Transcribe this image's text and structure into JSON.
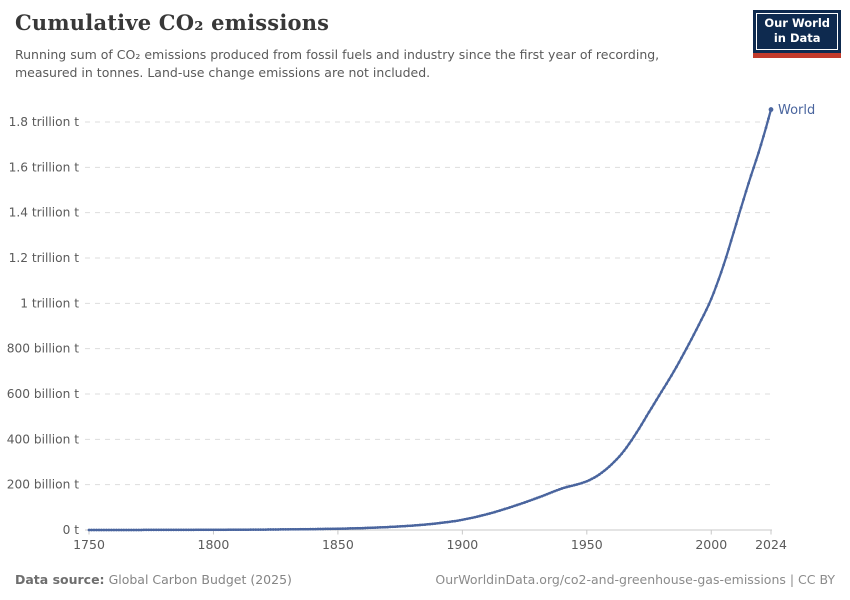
{
  "header": {
    "title": "Cumulative CO₂ emissions",
    "subtitle_line1": "Running sum of CO₂ emissions produced from fossil fuels and industry since the first year of recording,",
    "subtitle_line2": "measured in tonnes. Land-use change emissions are not included.",
    "logo": {
      "line1": "Our World",
      "line2": "in Data"
    }
  },
  "footer": {
    "source_label": "Data source:",
    "source_value": "Global Carbon Budget (2025)",
    "license": "OurWorldinData.org/co2-and-greenhouse-gas-emissions | CC BY"
  },
  "colors": {
    "accent_line": "#4a659e",
    "series_label": "#4a659e",
    "gridline": "#dddddd",
    "axis_line": "#c8c8c8",
    "tick_text": "#5b5b5b",
    "title_text": "#383838",
    "subtitle_text": "#5a5a5a",
    "logo_navy": "#0e2a4f",
    "logo_red": "#c23a2b"
  },
  "chart_data": {
    "type": "line",
    "title": "Cumulative CO₂ emissions",
    "xlabel": "",
    "ylabel": "",
    "units": "trillion tonnes CO₂",
    "xlim": [
      1750,
      2024
    ],
    "ylim": [
      0,
      1.8
    ],
    "grid": "dashed-horizontal",
    "legend_position": "end-of-line",
    "x_ticks": [
      {
        "value": 1750,
        "label": "1750"
      },
      {
        "value": 1800,
        "label": "1800"
      },
      {
        "value": 1850,
        "label": "1850"
      },
      {
        "value": 1900,
        "label": "1900"
      },
      {
        "value": 1950,
        "label": "1950"
      },
      {
        "value": 2000,
        "label": "2000"
      },
      {
        "value": 2024,
        "label": "2024"
      }
    ],
    "y_ticks": [
      {
        "value": 0,
        "label": "0 t"
      },
      {
        "value": 0.2,
        "label": "200 billion t"
      },
      {
        "value": 0.4,
        "label": "400 billion t"
      },
      {
        "value": 0.6,
        "label": "600 billion t"
      },
      {
        "value": 0.8,
        "label": "800 billion t"
      },
      {
        "value": 1,
        "label": "1 trillion t"
      },
      {
        "value": 1.2,
        "label": "1.2 trillion t"
      },
      {
        "value": 1.4,
        "label": "1.4 trillion t"
      },
      {
        "value": 1.6,
        "label": "1.6 trillion t"
      },
      {
        "value": 1.8,
        "label": "1.8 trillion t"
      }
    ],
    "series": [
      {
        "name": "World",
        "color": "#4a659e",
        "points": [
          [
            1750,
            0.0
          ],
          [
            1760,
            0.0001
          ],
          [
            1770,
            0.0002
          ],
          [
            1780,
            0.0004
          ],
          [
            1790,
            0.0006
          ],
          [
            1800,
            0.0009
          ],
          [
            1810,
            0.0013
          ],
          [
            1820,
            0.0019
          ],
          [
            1830,
            0.0028
          ],
          [
            1840,
            0.004
          ],
          [
            1850,
            0.0056
          ],
          [
            1860,
            0.0085
          ],
          [
            1870,
            0.013
          ],
          [
            1880,
            0.0195
          ],
          [
            1890,
            0.0295
          ],
          [
            1900,
            0.045
          ],
          [
            1910,
            0.07
          ],
          [
            1920,
            0.103
          ],
          [
            1930,
            0.141
          ],
          [
            1940,
            0.183
          ],
          [
            1950,
            0.215
          ],
          [
            1955,
            0.245
          ],
          [
            1960,
            0.29
          ],
          [
            1965,
            0.35
          ],
          [
            1970,
            0.43
          ],
          [
            1975,
            0.52
          ],
          [
            1980,
            0.61
          ],
          [
            1985,
            0.7
          ],
          [
            1990,
            0.8
          ],
          [
            1995,
            0.905
          ],
          [
            2000,
            1.02
          ],
          [
            2005,
            1.17
          ],
          [
            2010,
            1.35
          ],
          [
            2015,
            1.53
          ],
          [
            2020,
            1.7
          ],
          [
            2022,
            1.775
          ],
          [
            2023,
            1.815
          ],
          [
            2024,
            1.855
          ]
        ]
      }
    ]
  }
}
